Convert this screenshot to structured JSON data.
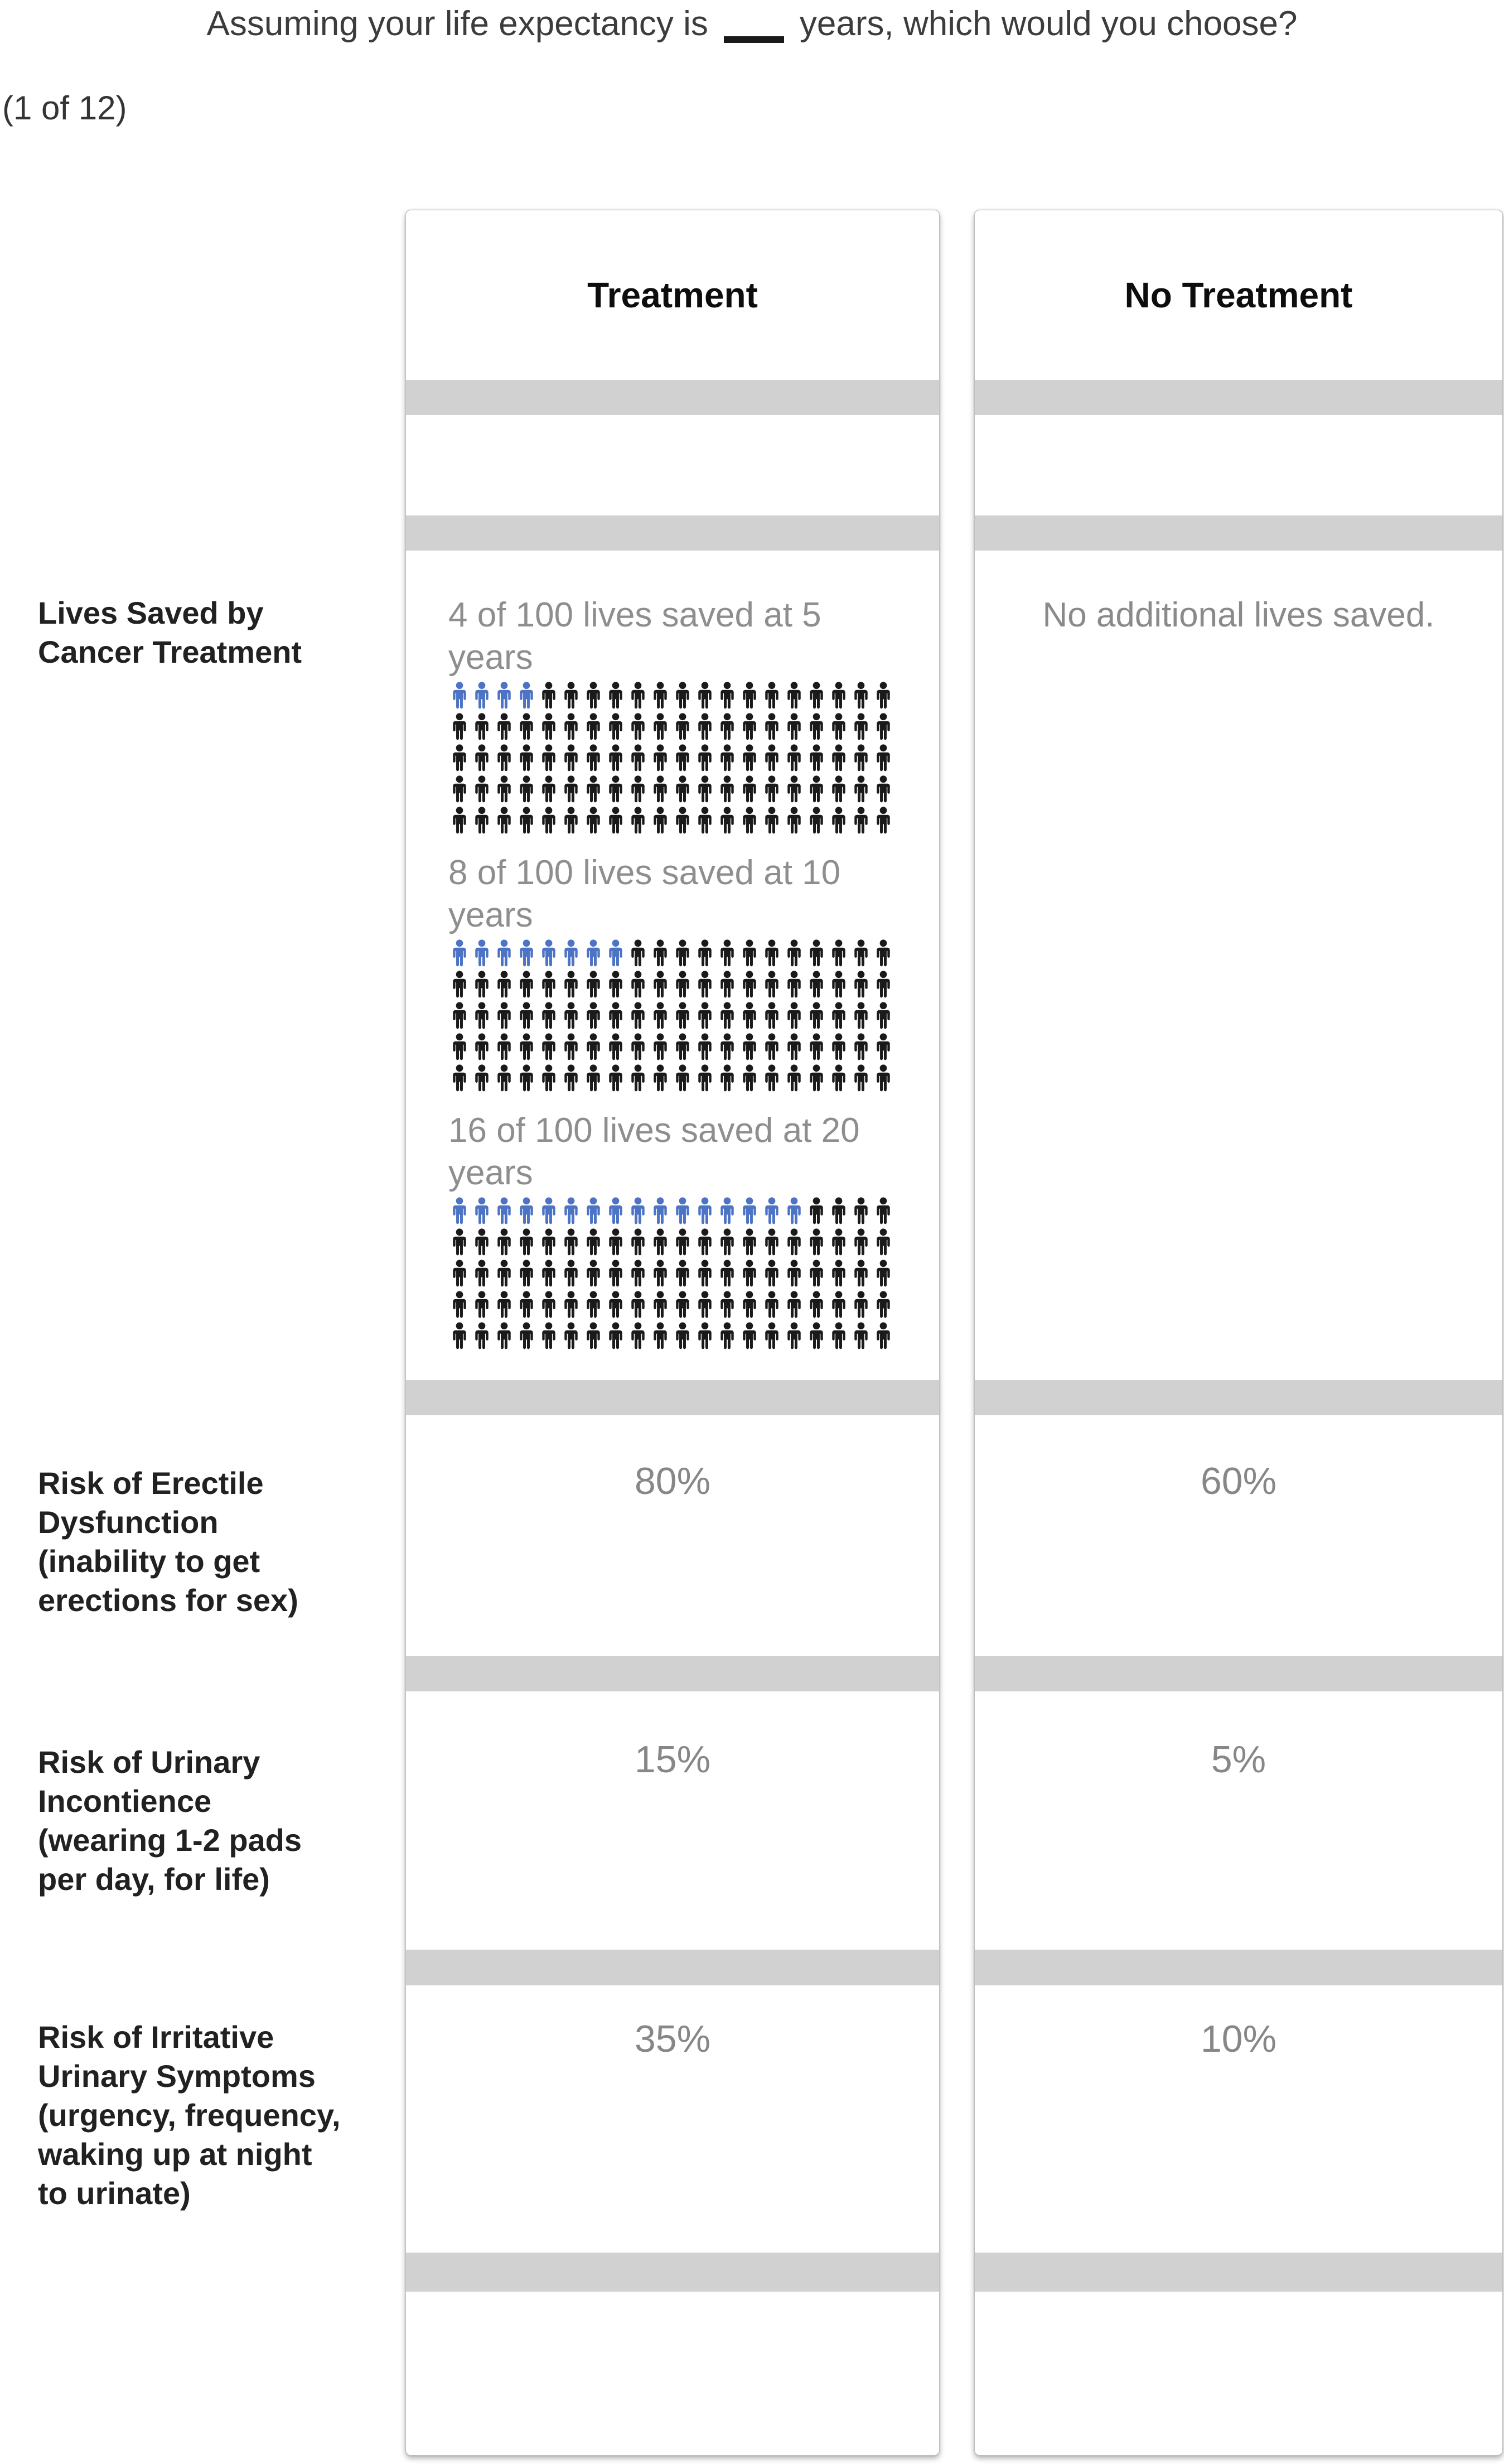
{
  "question": {
    "prefix": "Assuming your life expectancy is",
    "suffix": "years, which would you choose?",
    "progress": "(1 of 12)"
  },
  "columns": {
    "treatment": "Treatment",
    "no_treatment": "No Treatment"
  },
  "row_labels": [
    "Lives Saved by\nCancer Treatment",
    "Risk of Erectile\nDysfunction\n(inability to get\nerections for sex)",
    "Risk of Urinary\nIncontience\n(wearing 1-2 pads\nper day, for life)",
    "Risk of Irritative\nUrinary Symptoms\n(urgency, frequency,\nwaking up at night\nto urinate)"
  ],
  "lives_saved": {
    "no_treatment_text": "No additional lives saved.",
    "blocks": [
      {
        "caption": "4 of 100 lives saved at 5\nyears",
        "saved_icons": 4,
        "total_icons": 100,
        "icons_per_row": 20
      },
      {
        "caption": "8 of 100 lives saved at 10\nyears",
        "saved_icons": 8,
        "total_icons": 100,
        "icons_per_row": 20
      },
      {
        "caption": "16 of 100 lives saved at 20\nyears",
        "saved_icons": 16,
        "total_icons": 100,
        "icons_per_row": 20
      }
    ]
  },
  "risks": [
    {
      "treatment": "80%",
      "no_treatment": "60%"
    },
    {
      "treatment": "15%",
      "no_treatment": "5%"
    },
    {
      "treatment": "35%",
      "no_treatment": "10%"
    }
  ],
  "colors": {
    "saved_blue": "#4d73c5",
    "person_black": "#1a1a1a",
    "separator_gray": "#d1d1d1"
  }
}
